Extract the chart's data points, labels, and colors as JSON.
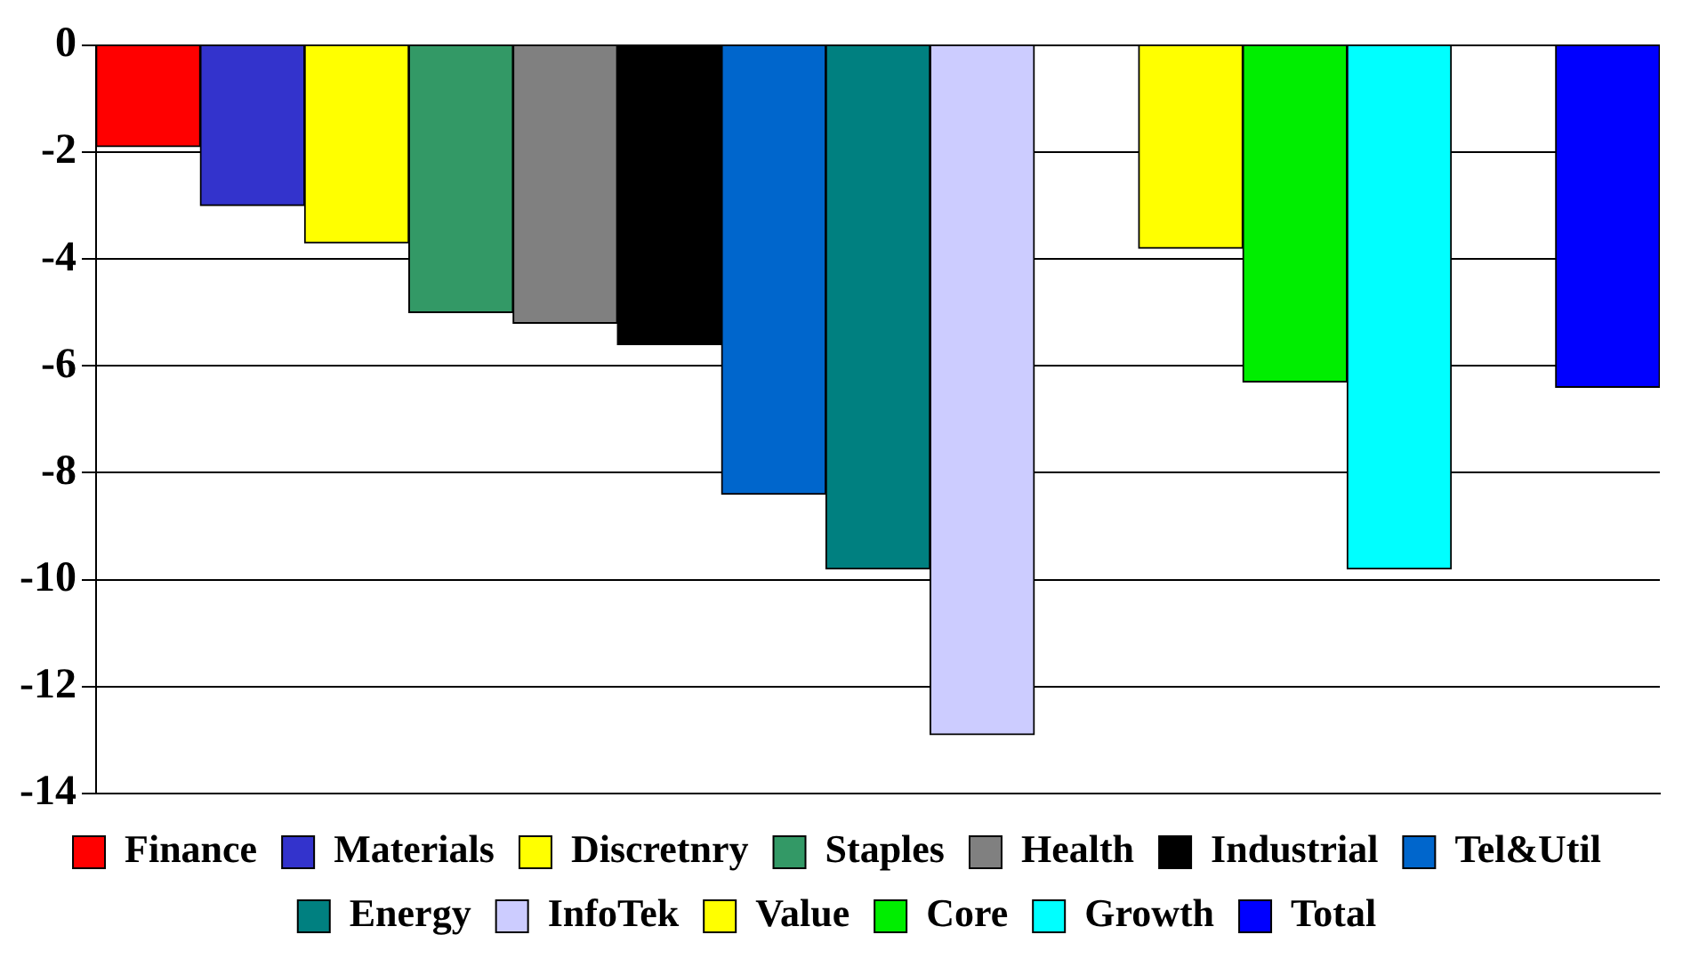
{
  "chart_data": {
    "type": "bar",
    "categories": [
      null,
      null,
      null,
      null,
      null,
      null,
      null,
      null,
      null,
      null,
      null,
      null,
      null,
      null,
      null
    ],
    "series": [
      {
        "name": "Finance",
        "color": "#ff0000",
        "values": [
          -1.9,
          null,
          null,
          null,
          null,
          null,
          null,
          null,
          null,
          null,
          null,
          null,
          null,
          null,
          null
        ]
      },
      {
        "name": "Materials",
        "color": "#3333cc",
        "values": [
          null,
          -3.0,
          null,
          null,
          null,
          null,
          null,
          null,
          null,
          null,
          null,
          null,
          null,
          null,
          null
        ]
      },
      {
        "name": "Discretnry",
        "color": "#ffff00",
        "values": [
          null,
          null,
          -3.7,
          null,
          null,
          null,
          null,
          null,
          null,
          null,
          null,
          null,
          null,
          null,
          null
        ]
      },
      {
        "name": "Staples",
        "color": "#339966",
        "values": [
          null,
          null,
          null,
          -5.0,
          null,
          null,
          null,
          null,
          null,
          null,
          null,
          null,
          null,
          null,
          null
        ]
      },
      {
        "name": "Health",
        "color": "#808080",
        "values": [
          null,
          null,
          null,
          null,
          -5.2,
          null,
          null,
          null,
          null,
          null,
          null,
          null,
          null,
          null,
          null
        ]
      },
      {
        "name": "Industrial",
        "color": "#000000",
        "values": [
          null,
          null,
          null,
          null,
          null,
          -5.6,
          null,
          null,
          null,
          null,
          null,
          null,
          null,
          null,
          null
        ]
      },
      {
        "name": "Tel&Util",
        "color": "#0066cc",
        "values": [
          null,
          null,
          null,
          null,
          null,
          null,
          -8.4,
          null,
          null,
          null,
          null,
          null,
          null,
          null,
          null
        ]
      },
      {
        "name": "Energy",
        "color": "#008080",
        "values": [
          null,
          null,
          null,
          null,
          null,
          null,
          null,
          -9.8,
          null,
          null,
          null,
          null,
          null,
          null,
          null
        ]
      },
      {
        "name": "InfoTek",
        "color": "#ccccff",
        "values": [
          null,
          null,
          null,
          null,
          null,
          null,
          null,
          null,
          -12.9,
          null,
          null,
          null,
          null,
          null,
          null
        ]
      },
      {
        "name": "Value",
        "color": "#ffff00",
        "values": [
          null,
          null,
          null,
          null,
          null,
          null,
          null,
          null,
          null,
          null,
          -3.8,
          null,
          null,
          null,
          null
        ]
      },
      {
        "name": "Core",
        "color": "#00ee00",
        "values": [
          null,
          null,
          null,
          null,
          null,
          null,
          null,
          null,
          null,
          null,
          null,
          -6.3,
          null,
          null,
          null
        ]
      },
      {
        "name": "Growth",
        "color": "#00ffff",
        "values": [
          null,
          null,
          null,
          null,
          null,
          null,
          null,
          null,
          null,
          null,
          null,
          null,
          -9.8,
          null,
          null
        ]
      },
      {
        "name": "Total",
        "color": "#0000ff",
        "values": [
          null,
          null,
          null,
          null,
          null,
          null,
          null,
          null,
          null,
          null,
          null,
          null,
          null,
          null,
          -6.4
        ]
      }
    ],
    "ylim": [
      -14,
      0
    ],
    "yticks": [
      -14,
      -12,
      -10,
      -8,
      -6,
      -4,
      -2,
      0
    ],
    "grid": "y",
    "legend": "bottom",
    "tick_labels": "y"
  }
}
